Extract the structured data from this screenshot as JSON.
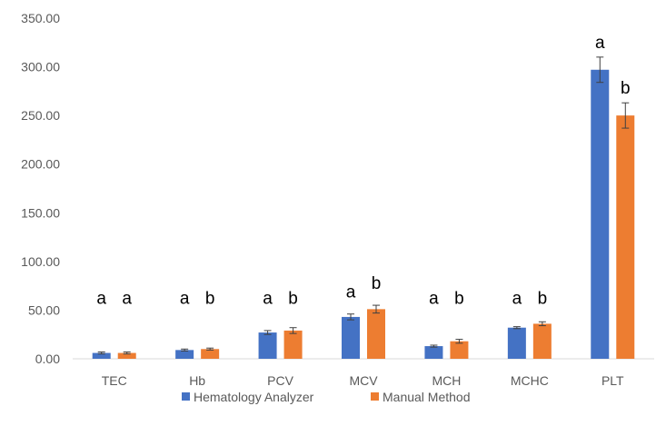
{
  "chart_data": {
    "type": "bar",
    "title": "",
    "xlabel": "",
    "ylabel": "",
    "ylim": [
      0,
      350
    ],
    "yticks": [
      "0.00",
      "50.00",
      "100.00",
      "150.00",
      "200.00",
      "250.00",
      "300.00",
      "350.00"
    ],
    "grid": false,
    "legend_position": "bottom",
    "categories": [
      "TEC",
      "Hb",
      "PCV",
      "MCV",
      "MCH",
      "MCHC",
      "PLT"
    ],
    "series": [
      {
        "name": "Hematology Analyzer",
        "color": "#4472C4",
        "values": [
          6,
          9,
          27,
          43,
          13,
          32,
          297
        ],
        "errors": [
          1,
          1,
          2,
          3,
          1,
          1,
          13
        ],
        "significance": [
          "a",
          "a",
          "a",
          "a",
          "a",
          "a",
          "a"
        ]
      },
      {
        "name": "Manual Method",
        "color": "#ED7D31",
        "values": [
          6,
          10,
          29,
          51,
          18,
          36,
          250
        ],
        "errors": [
          1,
          1,
          3,
          4,
          2,
          2,
          13
        ],
        "significance": [
          "a",
          "b",
          "b",
          "b",
          "b",
          "b",
          "b"
        ]
      }
    ]
  }
}
